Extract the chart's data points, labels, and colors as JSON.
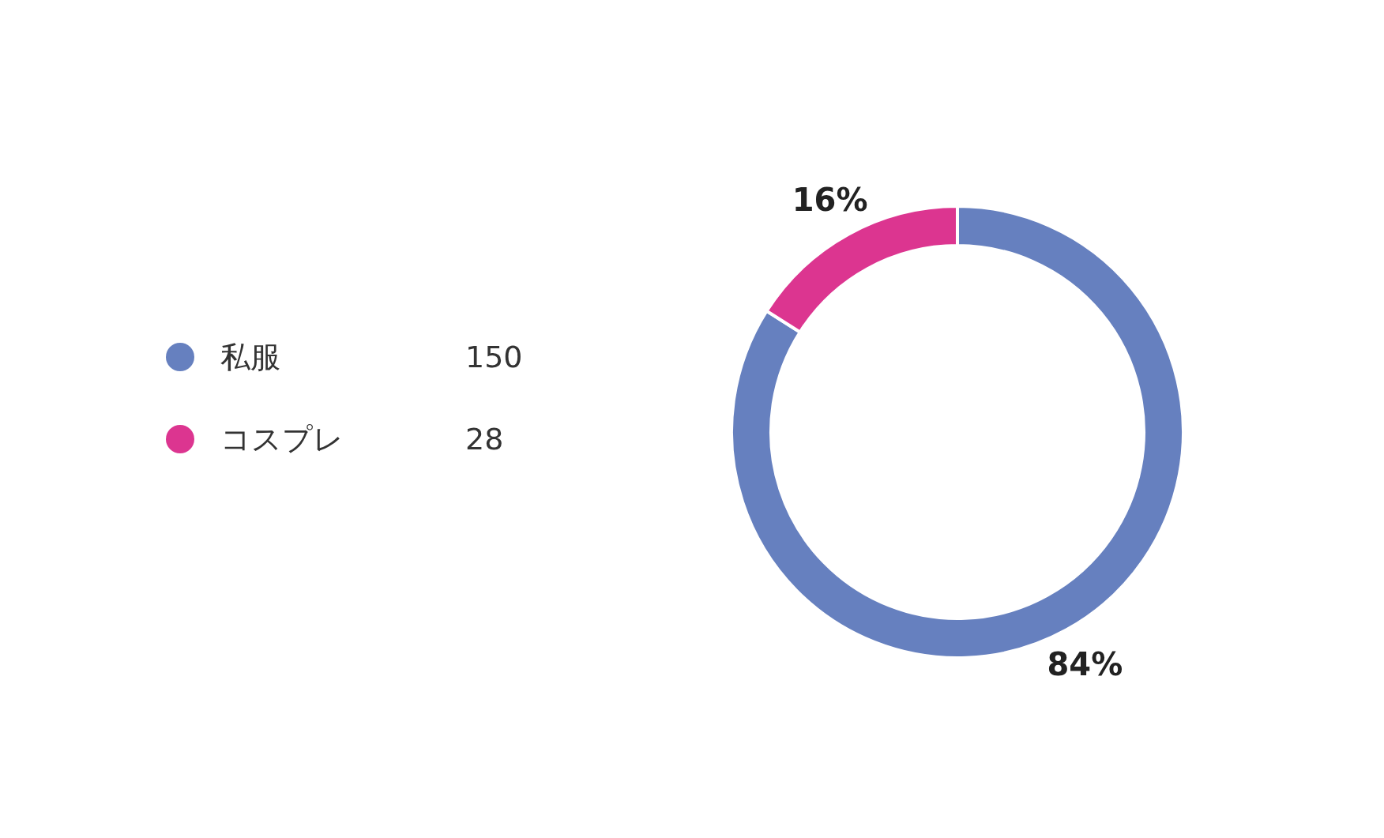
{
  "chart_data": {
    "type": "donut",
    "categories": [
      "私服",
      "コスプレ"
    ],
    "values": [
      84,
      16
    ],
    "annotations": [
      "150",
      "28"
    ],
    "colors": [
      "#6680bf",
      "#dc3590"
    ],
    "value_labels": [
      "84%",
      "16%"
    ],
    "legend": "left"
  }
}
